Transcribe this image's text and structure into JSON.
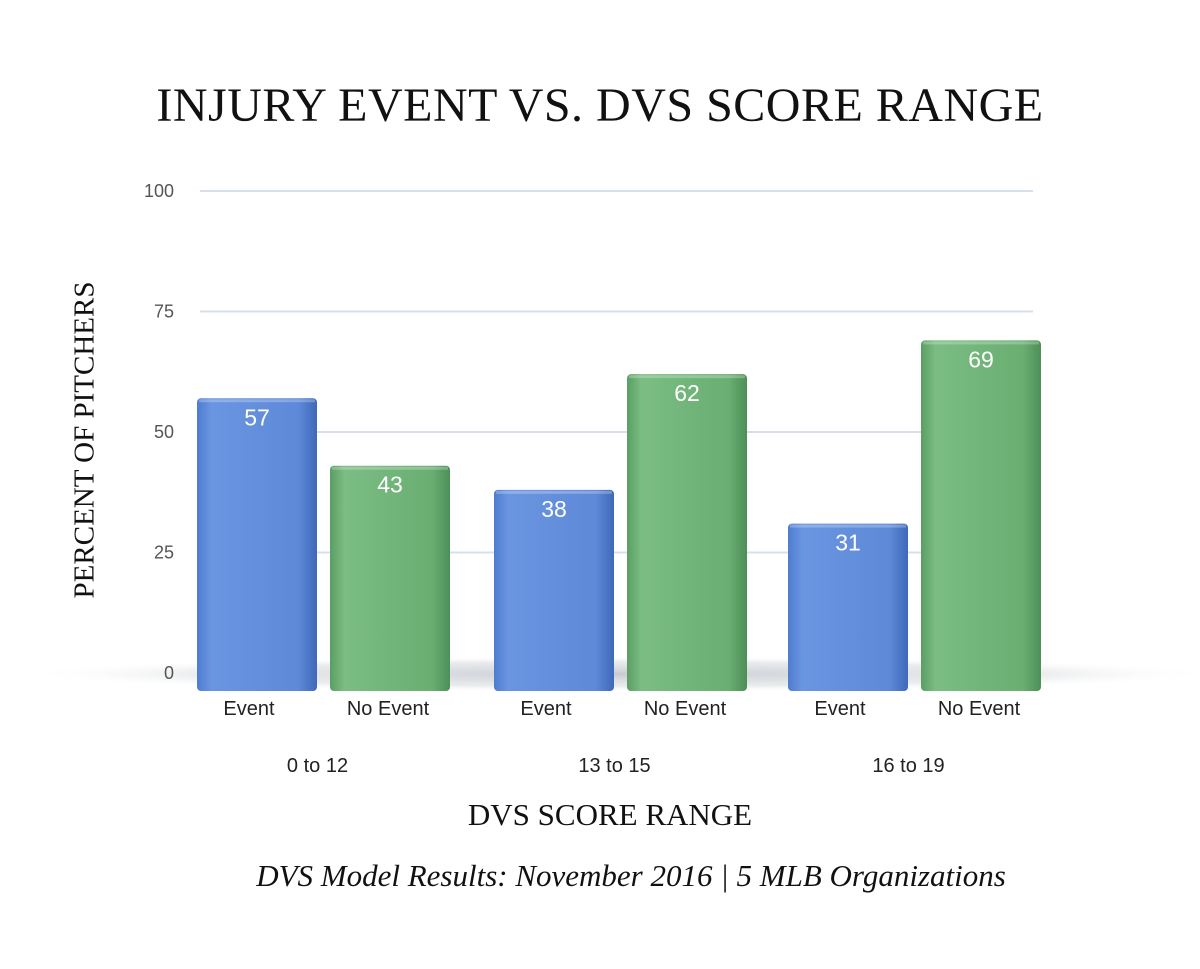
{
  "chart_data": {
    "type": "bar",
    "title": "INJURY EVENT VS. DVS SCORE RANGE",
    "xlabel": "DVS SCORE RANGE",
    "ylabel": "PERCENT OF PITCHERS",
    "caption": "DVS Model Results: November 2016 | 5 MLB Organizations",
    "ylim": [
      0,
      100
    ],
    "yticks": [
      0,
      25,
      50,
      75,
      100
    ],
    "grid": true,
    "groups": [
      "0 to 12",
      "13 to 15",
      "16 to 19"
    ],
    "series": [
      {
        "name": "Event",
        "color": "#5b87d6",
        "values": [
          57,
          38,
          31
        ]
      },
      {
        "name": "No Event",
        "color": "#6bae73",
        "values": [
          43,
          62,
          69
        ]
      }
    ]
  }
}
